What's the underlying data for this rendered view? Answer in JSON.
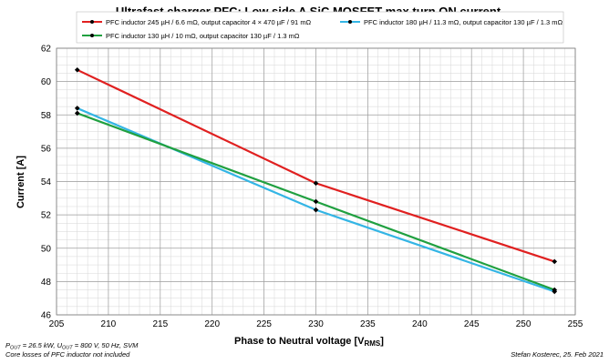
{
  "chart_data": {
    "type": "line",
    "title": "Ultrafast charger PFC: Low side A SiC MOSFET max turn ON current",
    "xlabel": "Phase to Neutral voltage [V",
    "xlabel_sub": "RMS",
    "xlabel_close": "]",
    "ylabel": "Current [A]",
    "xlim": [
      205,
      255
    ],
    "ylim": [
      46,
      62
    ],
    "x_ticks": [
      205,
      210,
      215,
      220,
      225,
      230,
      235,
      240,
      245,
      250,
      255
    ],
    "y_ticks": [
      46,
      48,
      50,
      52,
      54,
      56,
      58,
      60,
      62
    ],
    "grid": true,
    "legend_position": "top",
    "series": [
      {
        "name": "PFC inductor 245 µH / 6.6 mΩ, output capacitor 4 × 470 µF / 91 mΩ",
        "color": "#e02020",
        "x": [
          207,
          230,
          253
        ],
        "y": [
          60.7,
          53.9,
          49.2
        ]
      },
      {
        "name": "PFC inductor 180 µH / 11.3 mΩ, output capacitor 130 µF / 1.3 mΩ",
        "color": "#33b5e5",
        "x": [
          207,
          230,
          253
        ],
        "y": [
          58.4,
          52.3,
          47.4
        ]
      },
      {
        "name": "PFC inductor 130 µH / 10 mΩ, output capacitor 130 µF / 1.3 mΩ",
        "color": "#20a040",
        "x": [
          207,
          230,
          253
        ],
        "y": [
          58.1,
          52.8,
          47.5
        ]
      }
    ]
  },
  "notes": {
    "p_label": "P",
    "p_sub": "OUT",
    "p_rest": " = 26.5 kW, U",
    "u_sub": "OUT",
    "u_rest": " = 800 V, 50 Hz, SVM",
    "line2": "Core losses of PFC inductor not included",
    "credit": "Stefan Kosterec, 25. Feb 2021"
  }
}
